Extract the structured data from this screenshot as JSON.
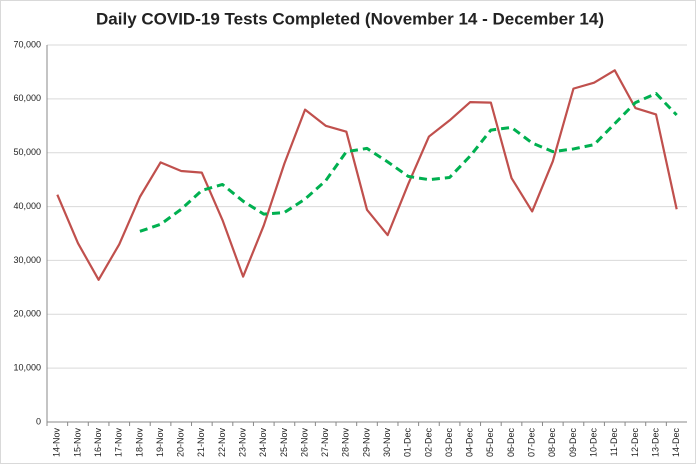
{
  "chart_data": {
    "type": "line",
    "title": "Daily COVID-19 Tests Completed (November 14 - December 14)",
    "categories": [
      "14-Nov",
      "15-Nov",
      "16-Nov",
      "17-Nov",
      "18-Nov",
      "19-Nov",
      "20-Nov",
      "21-Nov",
      "22-Nov",
      "23-Nov",
      "24-Nov",
      "25-Nov",
      "26-Nov",
      "27-Nov",
      "28-Nov",
      "29-Nov",
      "30-Nov",
      "01-Dec",
      "02-Dec",
      "03-Dec",
      "04-Dec",
      "05-Dec",
      "06-Dec",
      "07-Dec",
      "08-Dec",
      "09-Dec",
      "10-Dec",
      "11-Dec",
      "12-Dec",
      "13-Dec",
      "14-Dec"
    ],
    "series": [
      {
        "color": "#c0504d",
        "dashed": false,
        "values": [
          42200,
          33200,
          26400,
          33000,
          41800,
          48200,
          46600,
          46300,
          37500,
          27000,
          36500,
          48000,
          58000,
          55000,
          53900,
          39400,
          34700,
          44200,
          53000,
          56000,
          59400,
          59300,
          45300,
          39100,
          48400,
          61900,
          63000,
          65300,
          58300,
          57100,
          39500
        ]
      },
      {
        "color": "#00b050",
        "dashed": true,
        "values": [
          null,
          null,
          null,
          null,
          35400,
          36700,
          39500,
          43000,
          44100,
          41000,
          38600,
          38900,
          41400,
          44800,
          50200,
          50800,
          48300,
          45600,
          45000,
          45400,
          49400,
          54200,
          54700,
          51800,
          50200,
          50700,
          51500,
          55400,
          59300,
          61000,
          57000
        ]
      }
    ],
    "ylim": [
      0,
      70000
    ],
    "yticks": [
      {
        "value": 0,
        "label": "0"
      },
      {
        "value": 10000,
        "label": "10,000"
      },
      {
        "value": 20000,
        "label": "20,000"
      },
      {
        "value": 30000,
        "label": "30,000"
      },
      {
        "value": 40000,
        "label": "40,000"
      },
      {
        "value": 50000,
        "label": "50,000"
      },
      {
        "value": 60000,
        "label": "60,000"
      },
      {
        "value": 70000,
        "label": "70,000"
      }
    ],
    "grid": true
  }
}
